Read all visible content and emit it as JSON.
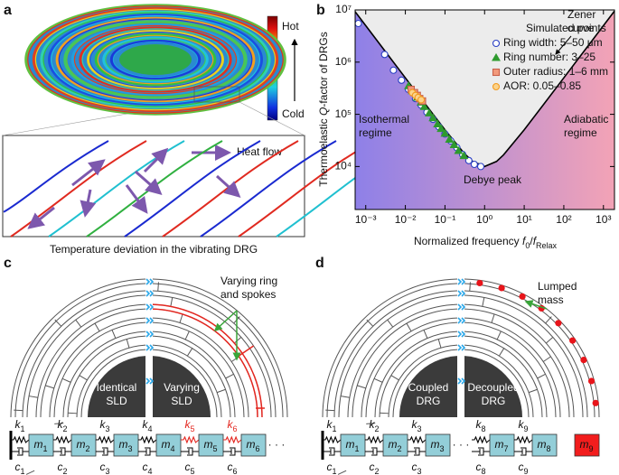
{
  "panel_a": {
    "label": "a",
    "hot": "Hot",
    "cold": "Cold",
    "heat_flow": "Heat flow",
    "caption": "Temperature deviation in the vibrating DRG"
  },
  "chart_data": {
    "type": "scatter",
    "panel_label": "b",
    "xlabel": [
      {
        "text": "Normalized frequency "
      },
      {
        "text": "f",
        "italic": true
      },
      {
        "text": "0",
        "sub": true
      },
      {
        "text": "/"
      },
      {
        "text": "f",
        "italic": true
      },
      {
        "text": "Relax",
        "sub": true
      }
    ],
    "ylabel": [
      {
        "text": "Thermoelastic "
      },
      {
        "text": "Q",
        "italic": true
      },
      {
        "text": "-factor of DRGs"
      }
    ],
    "log_x": true,
    "log_y": true,
    "xlim": [
      0.00054,
      1900
    ],
    "ylim": [
      1500,
      10000000
    ],
    "xticks": [
      {
        "value": 0.001,
        "label": "10⁻³"
      },
      {
        "value": 0.01,
        "label": "10⁻²"
      },
      {
        "value": 0.1,
        "label": "10⁻¹"
      },
      {
        "value": 1,
        "label": "10⁰"
      },
      {
        "value": 10,
        "label": "10¹"
      },
      {
        "value": 100,
        "label": "10²"
      },
      {
        "value": 1000,
        "label": "10³"
      }
    ],
    "yticks": [
      {
        "value": 10000,
        "label": "10⁴"
      },
      {
        "value": 100000,
        "label": "10⁵"
      },
      {
        "value": 1000000,
        "label": "10⁶"
      },
      {
        "value": 10000000,
        "label": "10⁷"
      }
    ],
    "legend": "upper right",
    "legend_title": "Simulated points",
    "zener_label": [
      "Zener",
      "curve"
    ],
    "isothermal_label": [
      "Isothermal",
      "regime"
    ],
    "adiabatic_label": [
      "Adiabatic",
      "regime"
    ],
    "debye_label": "Debye peak",
    "left_color": "#8e80e8",
    "right_color": "#f3a3b6",
    "inner_color": "#ececec",
    "curve": {
      "color": "#000000",
      "x": [
        0.0005,
        0.001,
        0.003,
        0.01,
        0.03,
        0.1,
        0.3,
        0.5,
        1,
        2,
        3,
        10,
        30,
        100,
        300,
        1000,
        1900
      ],
      "y": [
        10000000,
        5000000,
        1667000,
        500000,
        166700,
        50500,
        18170,
        12500,
        10000,
        12500,
        16670,
        50500,
        150200,
        500000,
        1500000,
        5000000,
        9500000
      ]
    },
    "series": [
      {
        "name": "Ring width: 5–50 μm",
        "marker": "circle",
        "color": "#2a3fc4",
        "fill": "#ffffff",
        "x": [
          0.00065,
          0.003,
          0.005,
          0.008,
          0.012,
          0.018,
          0.025,
          0.035,
          0.05,
          0.07,
          0.1,
          0.14,
          0.2,
          0.28,
          0.4,
          0.55,
          0.8
        ],
        "y": [
          5500000,
          1400000,
          700000,
          450000,
          300000,
          200000,
          150000,
          110000,
          80000,
          58000,
          42000,
          31000,
          23000,
          17000,
          13000,
          11000,
          10000
        ]
      },
      {
        "name": "Ring number: 3–25",
        "marker": "triangle",
        "color": "#2e9a2e",
        "fill": "#2e9a2e",
        "x": [
          0.012,
          0.015,
          0.02,
          0.025,
          0.03,
          0.04,
          0.05,
          0.065,
          0.08,
          0.1,
          0.13,
          0.17,
          0.22,
          0.3
        ],
        "y": [
          350000,
          280000,
          210000,
          170000,
          140000,
          105000,
          85000,
          65000,
          53000,
          43000,
          33000,
          26000,
          20000,
          16000
        ]
      },
      {
        "name": "Outer radius: 1–6 mm",
        "marker": "square",
        "color": "#c8604a",
        "fill": "#f29a7c",
        "x": [
          0.014,
          0.017,
          0.02,
          0.023,
          0.027
        ],
        "y": [
          300000,
          260000,
          230000,
          200000,
          180000
        ]
      },
      {
        "name": "AOR: 0.05–0.85",
        "marker": "circle",
        "color": "#f39a1e",
        "fill": "#fbd38a",
        "x": [
          0.015,
          0.018,
          0.021,
          0.025
        ],
        "y": [
          260000,
          230000,
          210000,
          190000
        ]
      }
    ]
  },
  "panel_c": {
    "label": "c",
    "note": [
      "Varying ring",
      "and spokes"
    ],
    "left": [
      "Identical",
      "SLD"
    ],
    "right": [
      "Varying",
      "SLD"
    ],
    "mass_color": "#93ced8",
    "chain": [
      {
        "k": {
          "sym": "k",
          "sub": "1"
        },
        "m": {
          "sym": "m",
          "sub": "1"
        },
        "c": {
          "sym": "c",
          "sub": "1"
        }
      },
      {
        "k": {
          "sym": "k",
          "sub": "2"
        },
        "m": {
          "sym": "m",
          "sub": "2"
        },
        "c": {
          "sym": "c",
          "sub": "2"
        }
      },
      {
        "k": {
          "sym": "k",
          "sub": "3"
        },
        "m": {
          "sym": "m",
          "sub": "3"
        },
        "c": {
          "sym": "c",
          "sub": "3"
        }
      },
      {
        "k": {
          "sym": "k",
          "sub": "4"
        },
        "m": {
          "sym": "m",
          "sub": "4"
        },
        "c": {
          "sym": "c",
          "sub": "4"
        }
      },
      {
        "k": {
          "sym": "k",
          "sub": "5",
          "color": "#e3261f"
        },
        "m": {
          "sym": "m",
          "sub": "5"
        },
        "c": {
          "sym": "c",
          "sub": "5"
        }
      },
      {
        "k": {
          "sym": "k",
          "sub": "6",
          "color": "#e3261f"
        },
        "m": {
          "sym": "m",
          "sub": "6"
        },
        "c": {
          "sym": "c",
          "sub": "6"
        }
      },
      "· · ·"
    ]
  },
  "panel_d": {
    "label": "d",
    "note": [
      "Lumped",
      "mass"
    ],
    "left": [
      "Coupled",
      "DRG"
    ],
    "right": [
      "Decoupled",
      "DRG"
    ],
    "mass_color": "#93ced8",
    "chain": [
      {
        "k": {
          "sym": "k",
          "sub": "1"
        },
        "m": {
          "sym": "m",
          "sub": "1"
        },
        "c": {
          "sym": "c",
          "sub": "1"
        }
      },
      {
        "k": {
          "sym": "k",
          "sub": "2"
        },
        "m": {
          "sym": "m",
          "sub": "2"
        },
        "c": {
          "sym": "c",
          "sub": "2"
        }
      },
      {
        "k": {
          "sym": "k",
          "sub": "3"
        },
        "m": {
          "sym": "m",
          "sub": "3"
        },
        "c": {
          "sym": "c",
          "sub": "3"
        }
      },
      "· · ·",
      {
        "k": {
          "sym": "k",
          "sub": "8"
        },
        "m": {
          "sym": "m",
          "sub": "7"
        },
        "c": {
          "sym": "c",
          "sub": "8"
        }
      },
      {
        "k": {
          "sym": "k",
          "sub": "9"
        },
        "m": {
          "sym": "m",
          "sub": "8"
        },
        "c": {
          "sym": "c",
          "sub": "9"
        }
      },
      {
        "m": {
          "sym": "m",
          "sub": "9",
          "color": "#f21d1d"
        }
      }
    ]
  }
}
